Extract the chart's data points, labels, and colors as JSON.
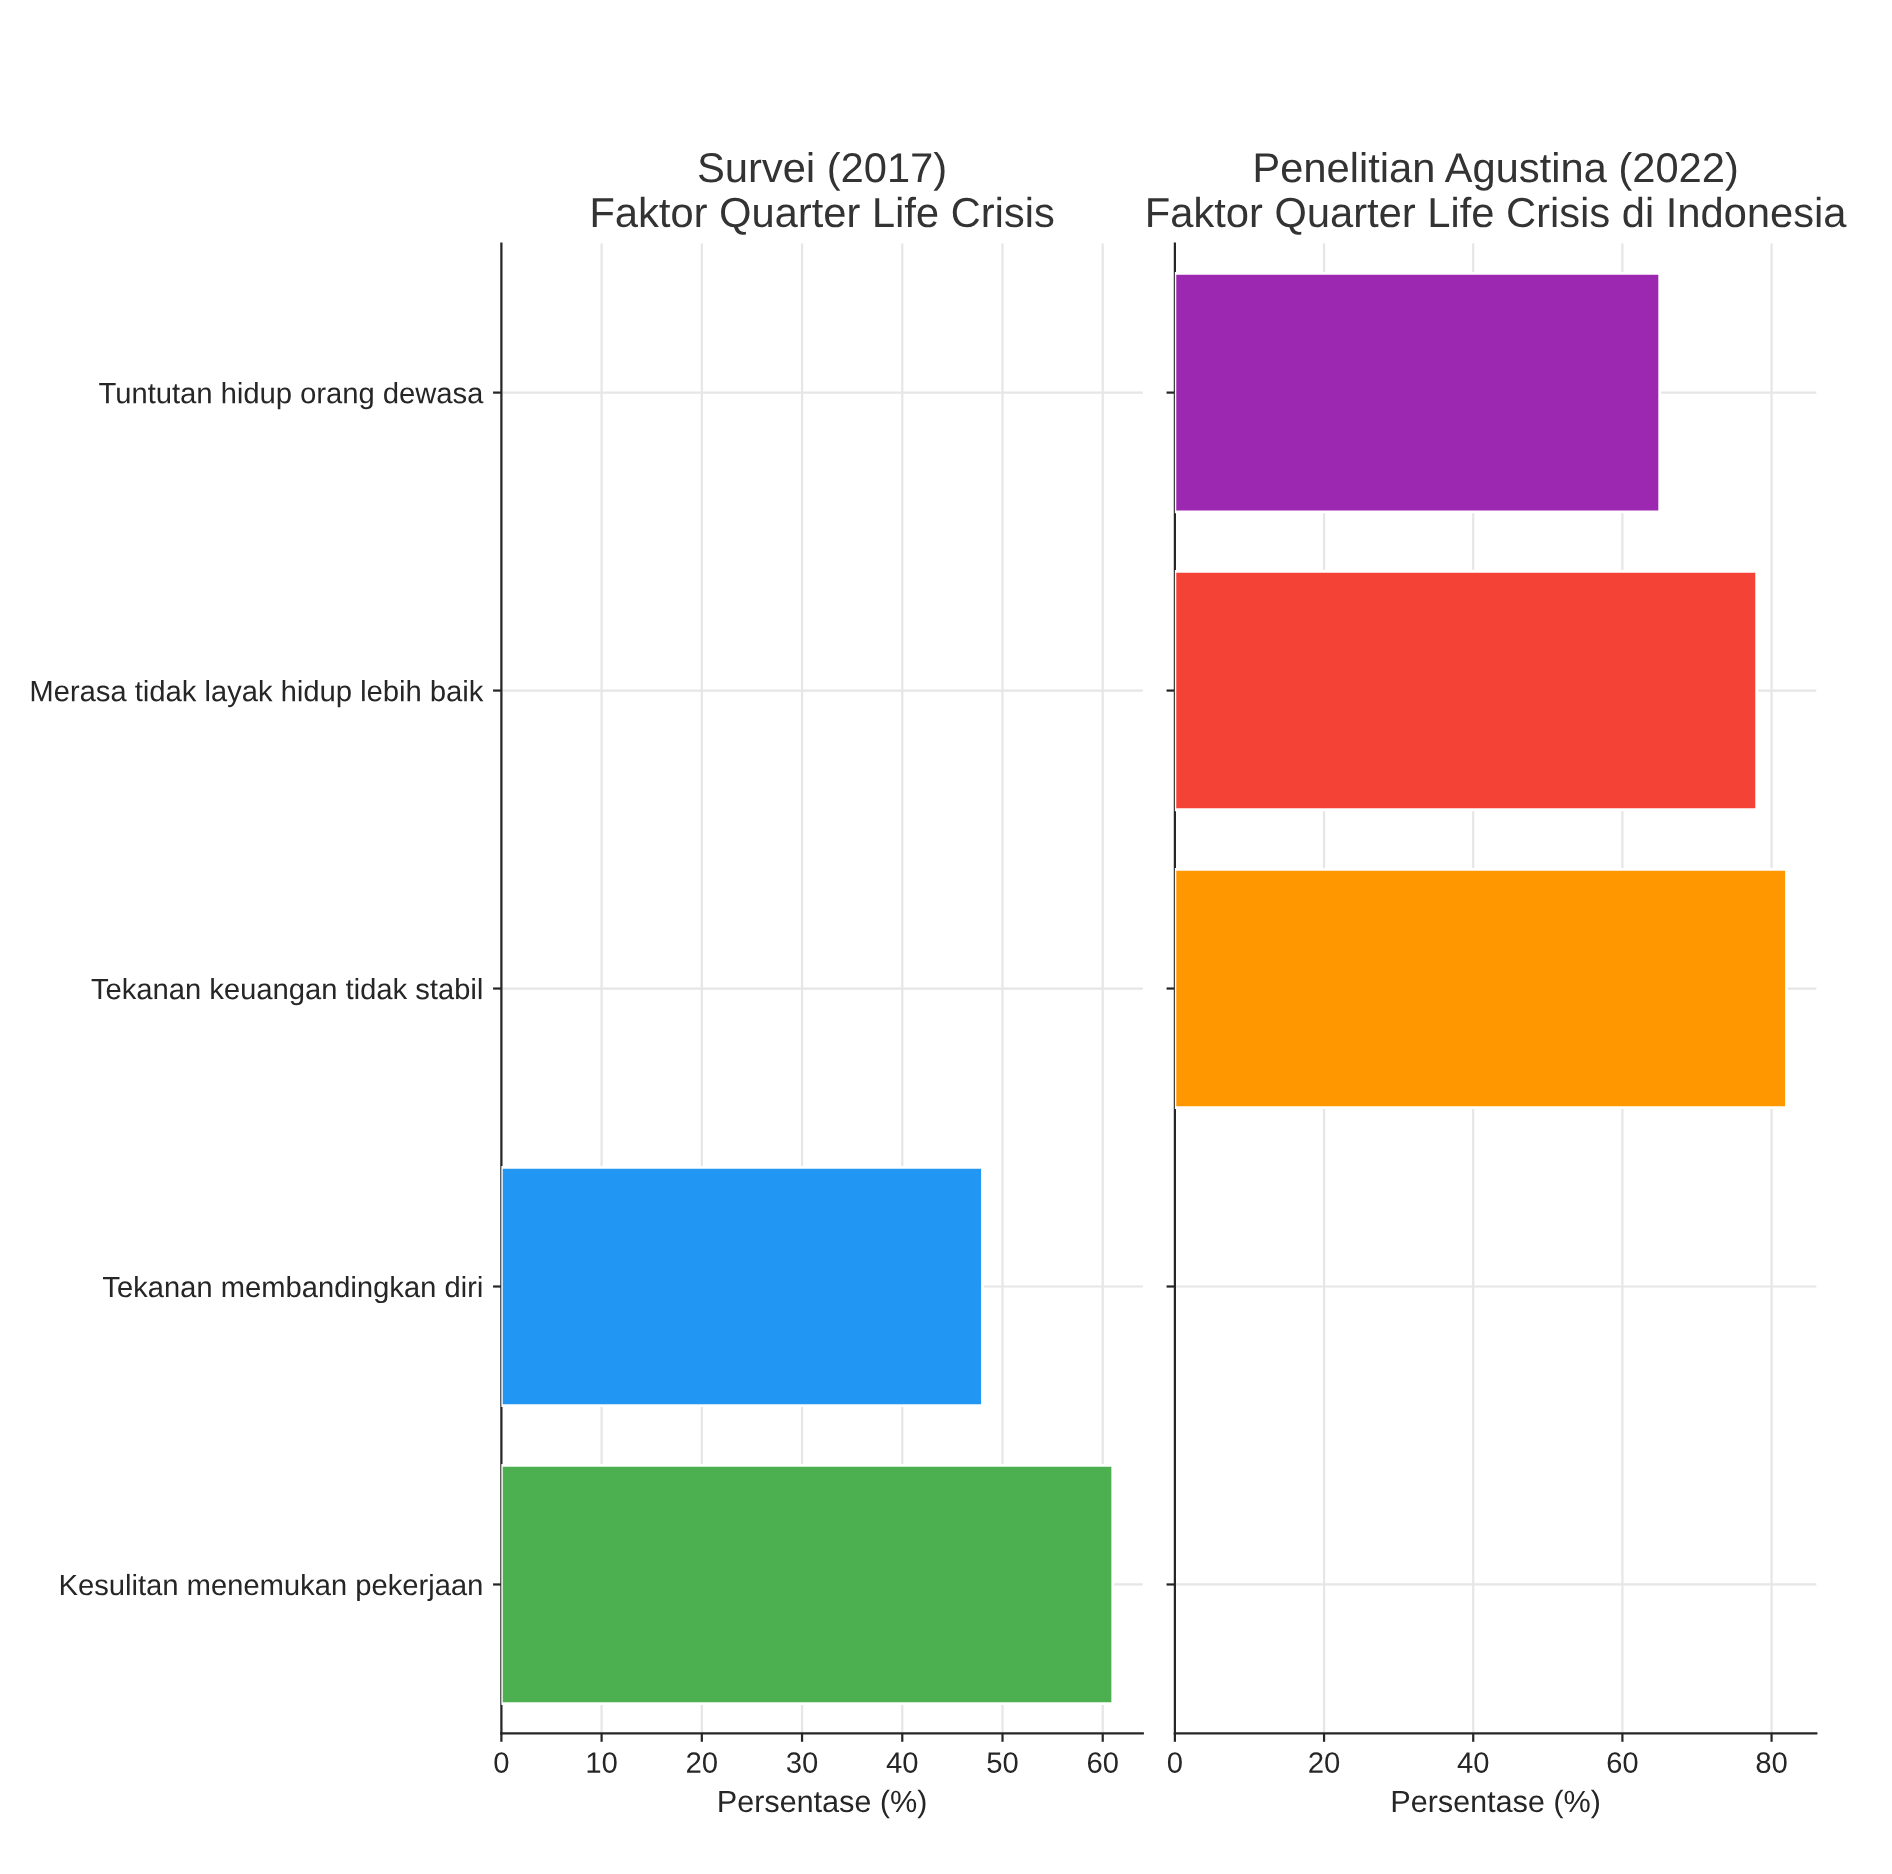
{
  "chart_data": [
    {
      "type": "bar",
      "orientation": "horizontal",
      "title": "Survei (2017)\nFaktor Quarter Life Crisis",
      "xlabel": "Persentase (%)",
      "categories": [
        "Tuntutan hidup orang dewasa",
        "Merasa tidak layak hidup lebih baik",
        "Tekanan keuangan tidak stabil",
        "Tekanan membandingkan diri",
        "Kesulitan menemukan pekerjaan"
      ],
      "values": [
        null,
        null,
        null,
        48,
        61
      ],
      "colors": [
        "#9c27b0",
        "#f44336",
        "#ff9800",
        "#2196f3",
        "#4caf50"
      ],
      "xlim": [
        0,
        64
      ],
      "xticks": [
        0,
        10,
        20,
        30,
        40,
        50,
        60
      ],
      "grid": true
    },
    {
      "type": "bar",
      "orientation": "horizontal",
      "title": "Penelitian Agustina (2022)\nFaktor Quarter Life Crisis di Indonesia",
      "xlabel": "Persentase (%)",
      "categories": [
        null,
        null,
        null,
        null,
        null
      ],
      "values": [
        65,
        78,
        82,
        null,
        null
      ],
      "colors": [
        "#9c27b0",
        "#f44336",
        "#ff9800",
        "#2196f3",
        "#4caf50"
      ],
      "xlim": [
        0,
        86
      ],
      "xticks": [
        0,
        20,
        40,
        60,
        80
      ],
      "grid": true
    }
  ]
}
